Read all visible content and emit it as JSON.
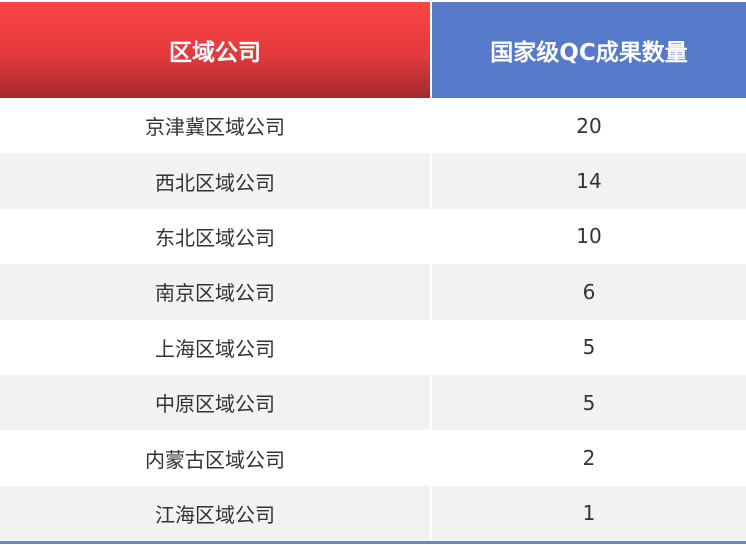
{
  "table": {
    "headers": [
      "区域公司",
      "国家级QC成果数量"
    ],
    "rows": [
      [
        "京津冀区域公司",
        "20"
      ],
      [
        "西北区域公司",
        "14"
      ],
      [
        "东北区域公司",
        "10"
      ],
      [
        "南京区域公司",
        "6"
      ],
      [
        "上海区域公司",
        "5"
      ],
      [
        "中原区域公司",
        "5"
      ],
      [
        "内蒙古区域公司",
        "2"
      ],
      [
        "江海区域公司",
        "1"
      ]
    ]
  },
  "colors": {
    "header_left": "#e33a3d",
    "header_right": "#5679c9",
    "alt_row": "#f2f2f2",
    "bottom_border": "#6c84bf"
  }
}
